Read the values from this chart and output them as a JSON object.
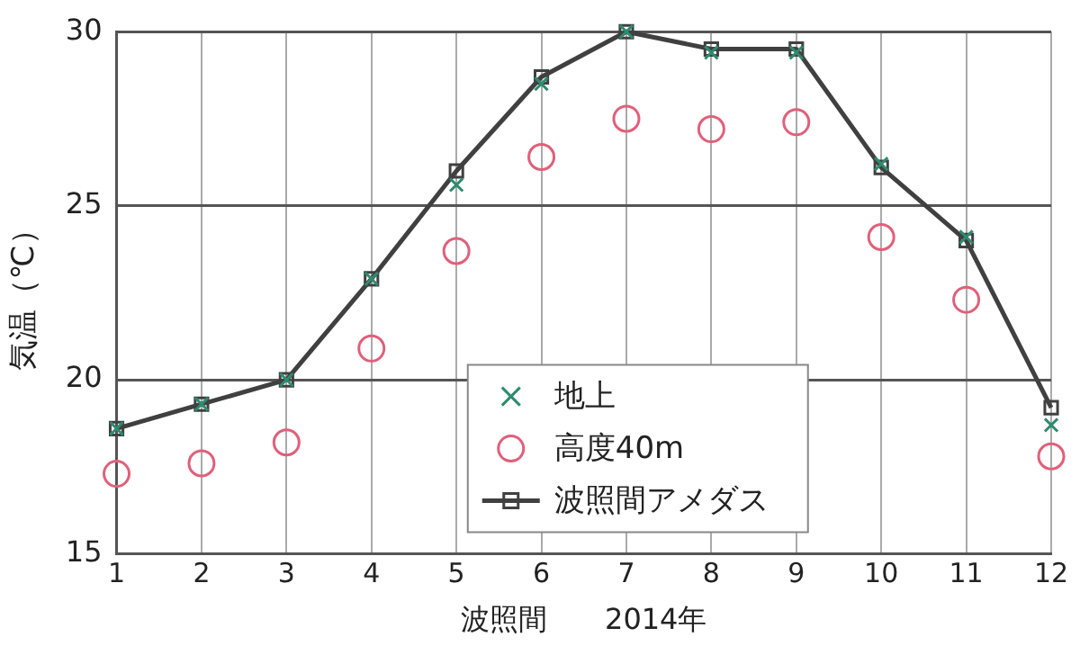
{
  "chart_data": {
    "type": "line",
    "xlabel": "波照間　　2014年",
    "ylabel": "気温（℃）",
    "x": [
      1,
      2,
      3,
      4,
      5,
      6,
      7,
      8,
      9,
      10,
      11,
      12
    ],
    "xlim": [
      1,
      12
    ],
    "xticks": [
      1,
      2,
      3,
      4,
      5,
      6,
      7,
      8,
      9,
      10,
      11,
      12
    ],
    "ylim": [
      15,
      30
    ],
    "yticks": [
      15,
      20,
      25,
      30
    ],
    "grid": true,
    "legend": "bottom",
    "series": [
      {
        "name": "地上",
        "type": "scatter",
        "marker": "cross",
        "color": "#2e8b6e",
        "values": [
          18.6,
          19.3,
          20.0,
          22.9,
          25.6,
          28.5,
          30.0,
          29.4,
          29.4,
          26.2,
          24.1,
          18.7
        ]
      },
      {
        "name": "高度40m",
        "type": "scatter",
        "marker": "circle",
        "color": "#e0607a",
        "values": [
          17.3,
          17.6,
          18.2,
          20.9,
          23.7,
          26.4,
          27.5,
          27.2,
          27.4,
          24.1,
          22.3,
          17.8
        ]
      },
      {
        "name": "波照間アメダス",
        "marker": "square",
        "color": "#404040",
        "values": [
          18.6,
          19.3,
          20.0,
          22.9,
          26.0,
          28.7,
          30.0,
          29.5,
          29.5,
          26.1,
          24.0,
          19.2
        ]
      }
    ]
  }
}
